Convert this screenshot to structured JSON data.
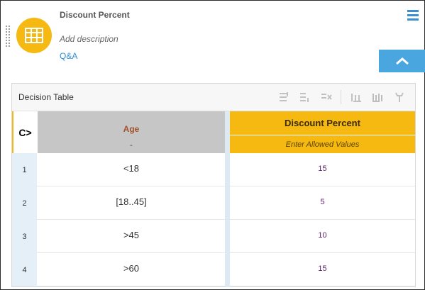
{
  "header": {
    "title": "Discount Percent",
    "description_placeholder": "Add description",
    "qa_link": "Q&A"
  },
  "colors": {
    "accent": "#f6b911",
    "link": "#2e8fd6",
    "collapse_button": "#4aa6df",
    "input_header": "#c6c6c6",
    "row_number_bg": "#e5eff8"
  },
  "icons": {
    "logo": "table-icon",
    "menu": "hamburger-menu-icon",
    "collapse": "chevron-up-icon",
    "toolbar": [
      "add-rule-above-icon",
      "add-rule-below-icon",
      "delete-rule-icon",
      "add-input-column-icon",
      "add-output-column-icon",
      "settings-tool-icon"
    ]
  },
  "decision_table": {
    "label": "Decision Table",
    "hit_policy": "C>",
    "input_column": {
      "name": "Age",
      "allowed_values": "-"
    },
    "output_column": {
      "name": "Discount Percent",
      "allowed_values": "Enter Allowed Values"
    },
    "rows": [
      {
        "num": "1",
        "input": "<18",
        "output": "15"
      },
      {
        "num": "2",
        "input": "[18..45]",
        "output": "5"
      },
      {
        "num": "3",
        "input": ">45",
        "output": "10"
      },
      {
        "num": "4",
        "input": ">60",
        "output": "15"
      }
    ]
  }
}
